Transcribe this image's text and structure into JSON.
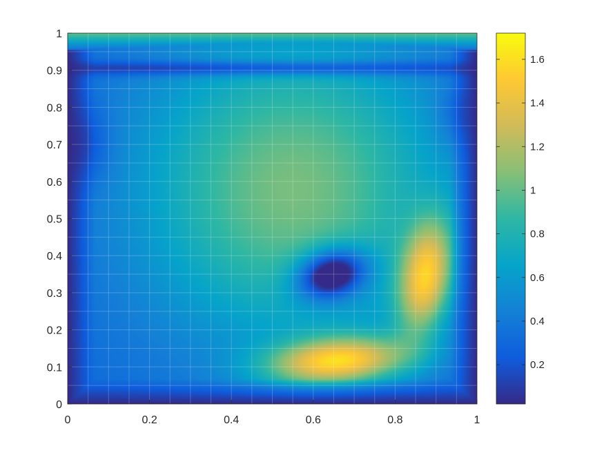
{
  "chart_data": {
    "type": "heatmap",
    "title": "",
    "xlabel": "",
    "ylabel": "",
    "xlim": [
      0,
      1
    ],
    "ylim": [
      0,
      1
    ],
    "grid": true,
    "colormap": "parula",
    "x_ticks": [
      "0",
      "0.2",
      "0.4",
      "0.6",
      "0.8",
      "1"
    ],
    "y_ticks": [
      "0",
      "0.1",
      "0.2",
      "0.3",
      "0.4",
      "0.5",
      "0.6",
      "0.7",
      "0.8",
      "0.9",
      "1"
    ],
    "colorbar": {
      "range": [
        0.02,
        1.72
      ],
      "ticks": [
        "0.2",
        "0.4",
        "0.6",
        "0.8",
        "1",
        "1.2",
        "1.4",
        "1.6"
      ]
    },
    "features": [
      {
        "x": 0.66,
        "y": 0.11,
        "value": 1.7
      },
      {
        "x": 0.88,
        "y": 0.33,
        "value": 1.6
      },
      {
        "x": 0.64,
        "y": 0.35,
        "value": 0.15
      },
      {
        "x": 0.55,
        "y": 0.65,
        "value": 1.05
      },
      {
        "x": 0.5,
        "y": 0.9,
        "value": 0.1
      },
      {
        "x": 0.5,
        "y": 1.0,
        "value": 1.0
      }
    ]
  },
  "colors": {
    "parula": [
      "#352a87",
      "#0f5cdd",
      "#1481d6",
      "#06a4ca",
      "#2eb7a4",
      "#87bf77",
      "#d1bb59",
      "#fec832",
      "#f9fb0e"
    ]
  }
}
